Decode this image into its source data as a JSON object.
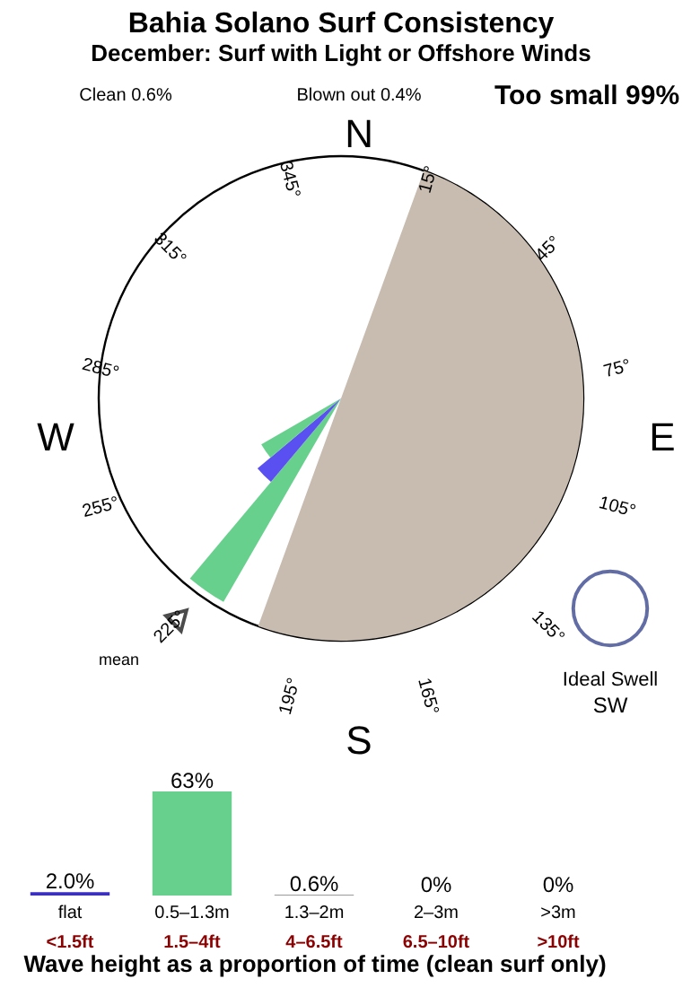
{
  "chart_data": [
    {
      "type": "other",
      "title": "Bahia Solano Surf Consistency",
      "subtitle": "December: Surf with Light or Offshore Winds",
      "annotations": [
        "Clean 0.6%",
        "Blown out 0.4%",
        "Too small 99%",
        "N",
        "15°",
        "45°",
        "75°",
        "E",
        "105°",
        "135°",
        "165°",
        "S",
        "195°",
        "225°",
        "255°",
        "W",
        "285°",
        "315°",
        "345°",
        "mean",
        "Ideal Swell",
        "SW"
      ]
    },
    {
      "type": "bar",
      "xlabel": "Wave height as a proportion of time (clean surf only)",
      "categories": [
        "flat",
        "0.5–1.3m",
        "1.3–2m",
        "2–3m",
        ">3m"
      ],
      "values": [
        2.0,
        63,
        0.6,
        0,
        0
      ],
      "value_labels": [
        "2.0%",
        "63%",
        "0.6%",
        "0%",
        "0%"
      ],
      "colors": [
        "#3a2fc0",
        "#66d08c",
        "#999999",
        "#999999",
        "#999999"
      ],
      "tick_labels": "x",
      "annotations": [
        "<1.5ft",
        "1.5–4ft",
        "4–6.5ft",
        "6.5–10ft",
        ">10ft"
      ]
    }
  ]
}
